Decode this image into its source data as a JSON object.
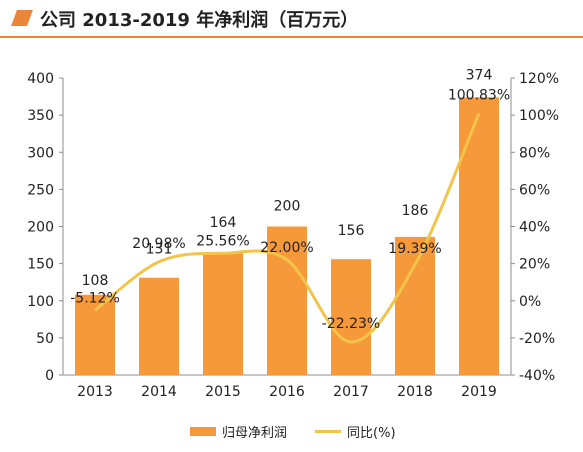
{
  "title": "公司 2013-2019 年净利润（百万元）",
  "colors": {
    "accent": "#e9863a",
    "bar": "#f5993a",
    "line": "#f2c44a"
  },
  "legend": {
    "bar_label": "归母净利润",
    "line_label": "同比(%)"
  },
  "chart_data": {
    "type": "bar",
    "categories": [
      "2013",
      "2014",
      "2015",
      "2016",
      "2017",
      "2018",
      "2019"
    ],
    "series": [
      {
        "name": "归母净利润",
        "type": "bar",
        "axis": "left",
        "values": [
          108,
          131,
          164,
          200,
          156,
          186,
          374
        ],
        "labels": [
          "108",
          "131",
          "164",
          "200",
          "156",
          "186",
          "374"
        ]
      },
      {
        "name": "同比(%)",
        "type": "line",
        "axis": "right",
        "values": [
          -5.12,
          20.98,
          25.56,
          22.0,
          -22.23,
          19.39,
          100.83
        ],
        "labels": [
          "-5.12%",
          "20.98%",
          "25.56%",
          "22.00%",
          "-22.23%",
          "19.39%",
          "100.83%"
        ]
      }
    ],
    "ylim_left": [
      0,
      400
    ],
    "yticks_left": [
      "0",
      "50",
      "100",
      "150",
      "200",
      "250",
      "300",
      "350",
      "400"
    ],
    "ylim_right": [
      -40,
      120
    ],
    "yticks_right": [
      "-40%",
      "-20%",
      "0%",
      "20%",
      "40%",
      "60%",
      "80%",
      "100%",
      "120%"
    ],
    "grid": false,
    "legend_position": "bottom-center"
  }
}
